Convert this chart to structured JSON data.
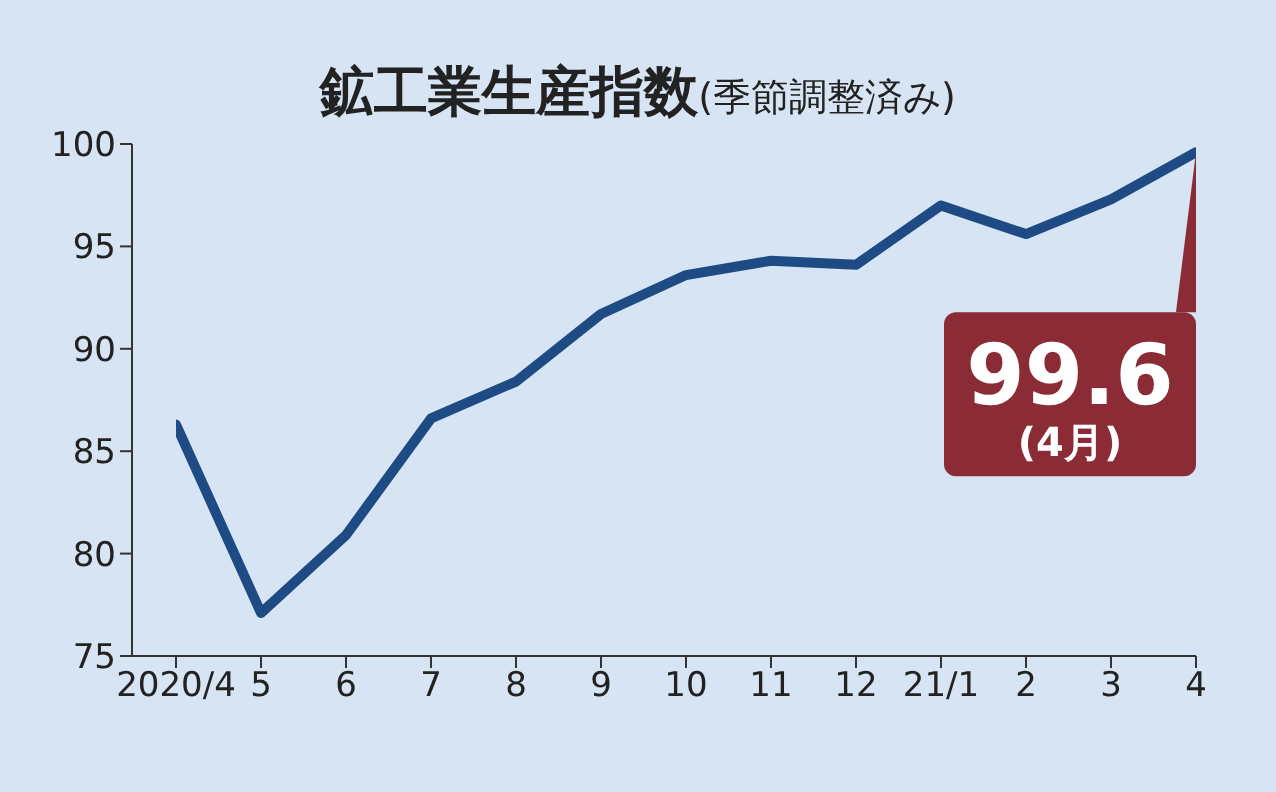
{
  "chart_data": {
    "type": "line",
    "title": "鉱工業生産指数",
    "subtitle": "(季節調整済み)",
    "categories": [
      "2020/4",
      "5",
      "6",
      "7",
      "8",
      "9",
      "10",
      "11",
      "12",
      "21/1",
      "2",
      "3",
      "4"
    ],
    "series": [
      {
        "color": "#1f4b85",
        "values": [
          86.3,
          77.1,
          80.9,
          86.6,
          88.4,
          91.7,
          93.6,
          94.3,
          94.1,
          97.0,
          95.6,
          97.3,
          99.6
        ]
      }
    ],
    "ylim": [
      75,
      100
    ],
    "yticks": [
      75,
      80,
      85,
      90,
      95,
      100
    ],
    "grid": false,
    "legend": false,
    "marker": "none",
    "line_style": "solid",
    "annotations": [
      {
        "text": "99.6\n(4月)",
        "x": "4",
        "y": 99.6
      }
    ]
  }
}
